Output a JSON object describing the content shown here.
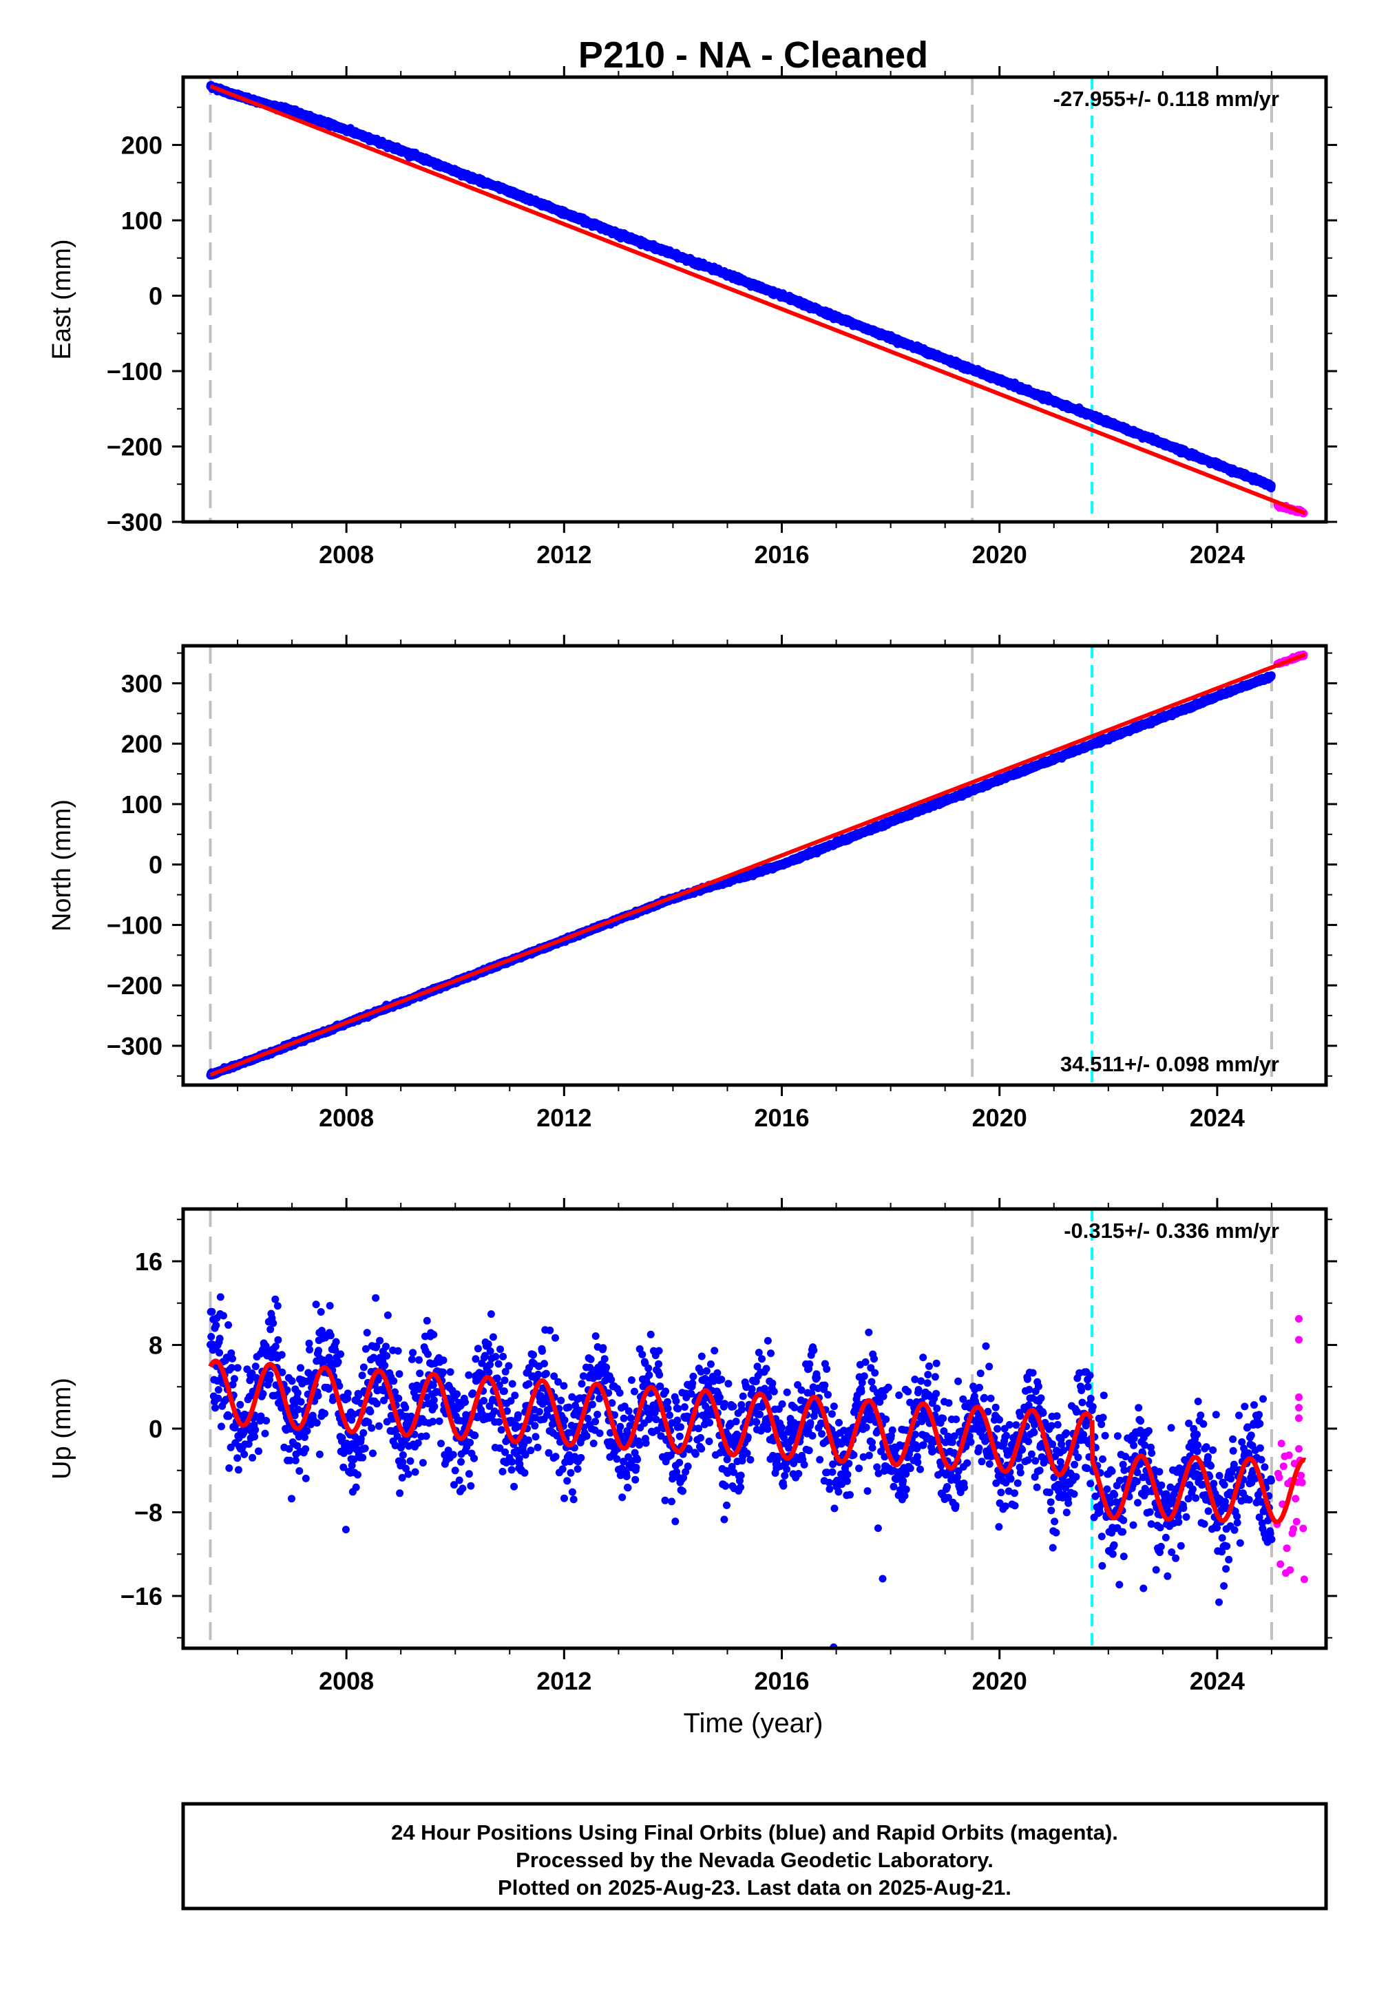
{
  "title": "P210  - NA - Cleaned",
  "footer": {
    "lines": [
      "24 Hour Positions Using Final Orbits (blue) and Rapid Orbits (magenta).",
      "Processed by the Nevada Geodetic Laboratory.",
      "Plotted on 2025-Aug-23. Last data on 2025-Aug-21."
    ]
  },
  "colors": {
    "final_orbits": "#0000ff",
    "rapid_orbits": "#ff00ff",
    "model_fit": "#ff0000",
    "equipment_change_lines": "#c0c0c0",
    "earthquake_line": "#00ffff"
  },
  "chart_data": [
    {
      "type": "scatter",
      "ylabel": "East (mm)",
      "xlabel": "",
      "rate_label": "-27.955+/- 0.118 mm/yr",
      "rate_label_position": "top-right",
      "xlim": [
        2005.0,
        2026.0
      ],
      "ylim": [
        -300,
        290
      ],
      "yticks": [
        -300,
        -200,
        -100,
        0,
        100,
        200
      ],
      "xticks": [
        2008,
        2012,
        2016,
        2020,
        2024
      ],
      "vlines_gray": [
        2005.5,
        2019.5,
        2025.0
      ],
      "vlines_cyan": [
        2021.7
      ],
      "series": [
        {
          "name": "Final Orbits",
          "color": "blue",
          "x": [
            2005.5,
            2006,
            2007,
            2008,
            2009,
            2010,
            2011,
            2012,
            2013,
            2014,
            2015,
            2016,
            2017,
            2018,
            2019,
            2020,
            2021,
            2022,
            2023,
            2024,
            2025.0
          ],
          "y": [
            278,
            265,
            245,
            220,
            193,
            165,
            138,
            110,
            82,
            55,
            28,
            0,
            -28,
            -56,
            -84,
            -112,
            -140,
            -168,
            -196,
            -224,
            -252
          ]
        },
        {
          "name": "Rapid Orbits",
          "color": "magenta",
          "x": [
            2025.1,
            2025.6
          ],
          "y": [
            -278,
            -288
          ]
        },
        {
          "name": "Model",
          "color": "red",
          "x": [
            2005.5,
            2025.6
          ],
          "y": [
            278,
            -288
          ]
        }
      ]
    },
    {
      "type": "scatter",
      "ylabel": "North (mm)",
      "xlabel": "",
      "rate_label": "34.511+/- 0.098 mm/yr",
      "rate_label_position": "bottom-right",
      "xlim": [
        2005.0,
        2026.0
      ],
      "ylim": [
        -365,
        362
      ],
      "yticks": [
        -300,
        -200,
        -100,
        0,
        100,
        200,
        300
      ],
      "xticks": [
        2008,
        2012,
        2016,
        2020,
        2024
      ],
      "vlines_gray": [
        2005.5,
        2019.5,
        2025.0
      ],
      "vlines_cyan": [
        2021.7
      ],
      "series": [
        {
          "name": "Final Orbits",
          "color": "blue",
          "x": [
            2005.5,
            2006,
            2008,
            2010,
            2012,
            2014,
            2016,
            2018,
            2020,
            2022,
            2024,
            2025.0
          ],
          "y": [
            -348,
            -332,
            -263,
            -194,
            -125,
            -56,
            0,
            71,
            140,
            209,
            278,
            312
          ]
        },
        {
          "name": "Rapid Orbits",
          "color": "magenta",
          "x": [
            2025.1,
            2025.6
          ],
          "y": [
            332,
            347
          ]
        },
        {
          "name": "Model",
          "color": "red",
          "x": [
            2005.5,
            2025.6
          ],
          "y": [
            -348,
            347
          ]
        }
      ]
    },
    {
      "type": "scatter",
      "ylabel": "Up (mm)",
      "xlabel": "Time (year)",
      "rate_label": "-0.315+/- 0.336 mm/yr",
      "rate_label_position": "top-right",
      "xlim": [
        2005.0,
        2026.0
      ],
      "ylim": [
        -21,
        21
      ],
      "yticks": [
        -16,
        -8,
        0,
        8,
        16
      ],
      "xticks": [
        2008,
        2012,
        2016,
        2020,
        2024
      ],
      "vlines_gray": [
        2005.5,
        2019.5,
        2025.0
      ],
      "vlines_cyan": [
        2021.7
      ],
      "series": [
        {
          "name": "Final Orbits",
          "color": "blue",
          "x": [
            2005.5,
            2007,
            2009,
            2011,
            2013,
            2015,
            2017,
            2019,
            2021,
            2022,
            2024,
            2025.0
          ],
          "y": [
            3.5,
            3,
            2.5,
            2,
            1.5,
            1,
            0.5,
            -1,
            -2,
            -7,
            -7.5,
            -8
          ]
        },
        {
          "name": "Rapid Orbits",
          "color": "magenta",
          "x": [
            2025.1,
            2025.6
          ],
          "y": [
            -3,
            1
          ]
        },
        {
          "name": "Model",
          "color": "red",
          "amplitude": 3,
          "offset_before": 3.5,
          "offset_after": -8
        }
      ]
    }
  ]
}
